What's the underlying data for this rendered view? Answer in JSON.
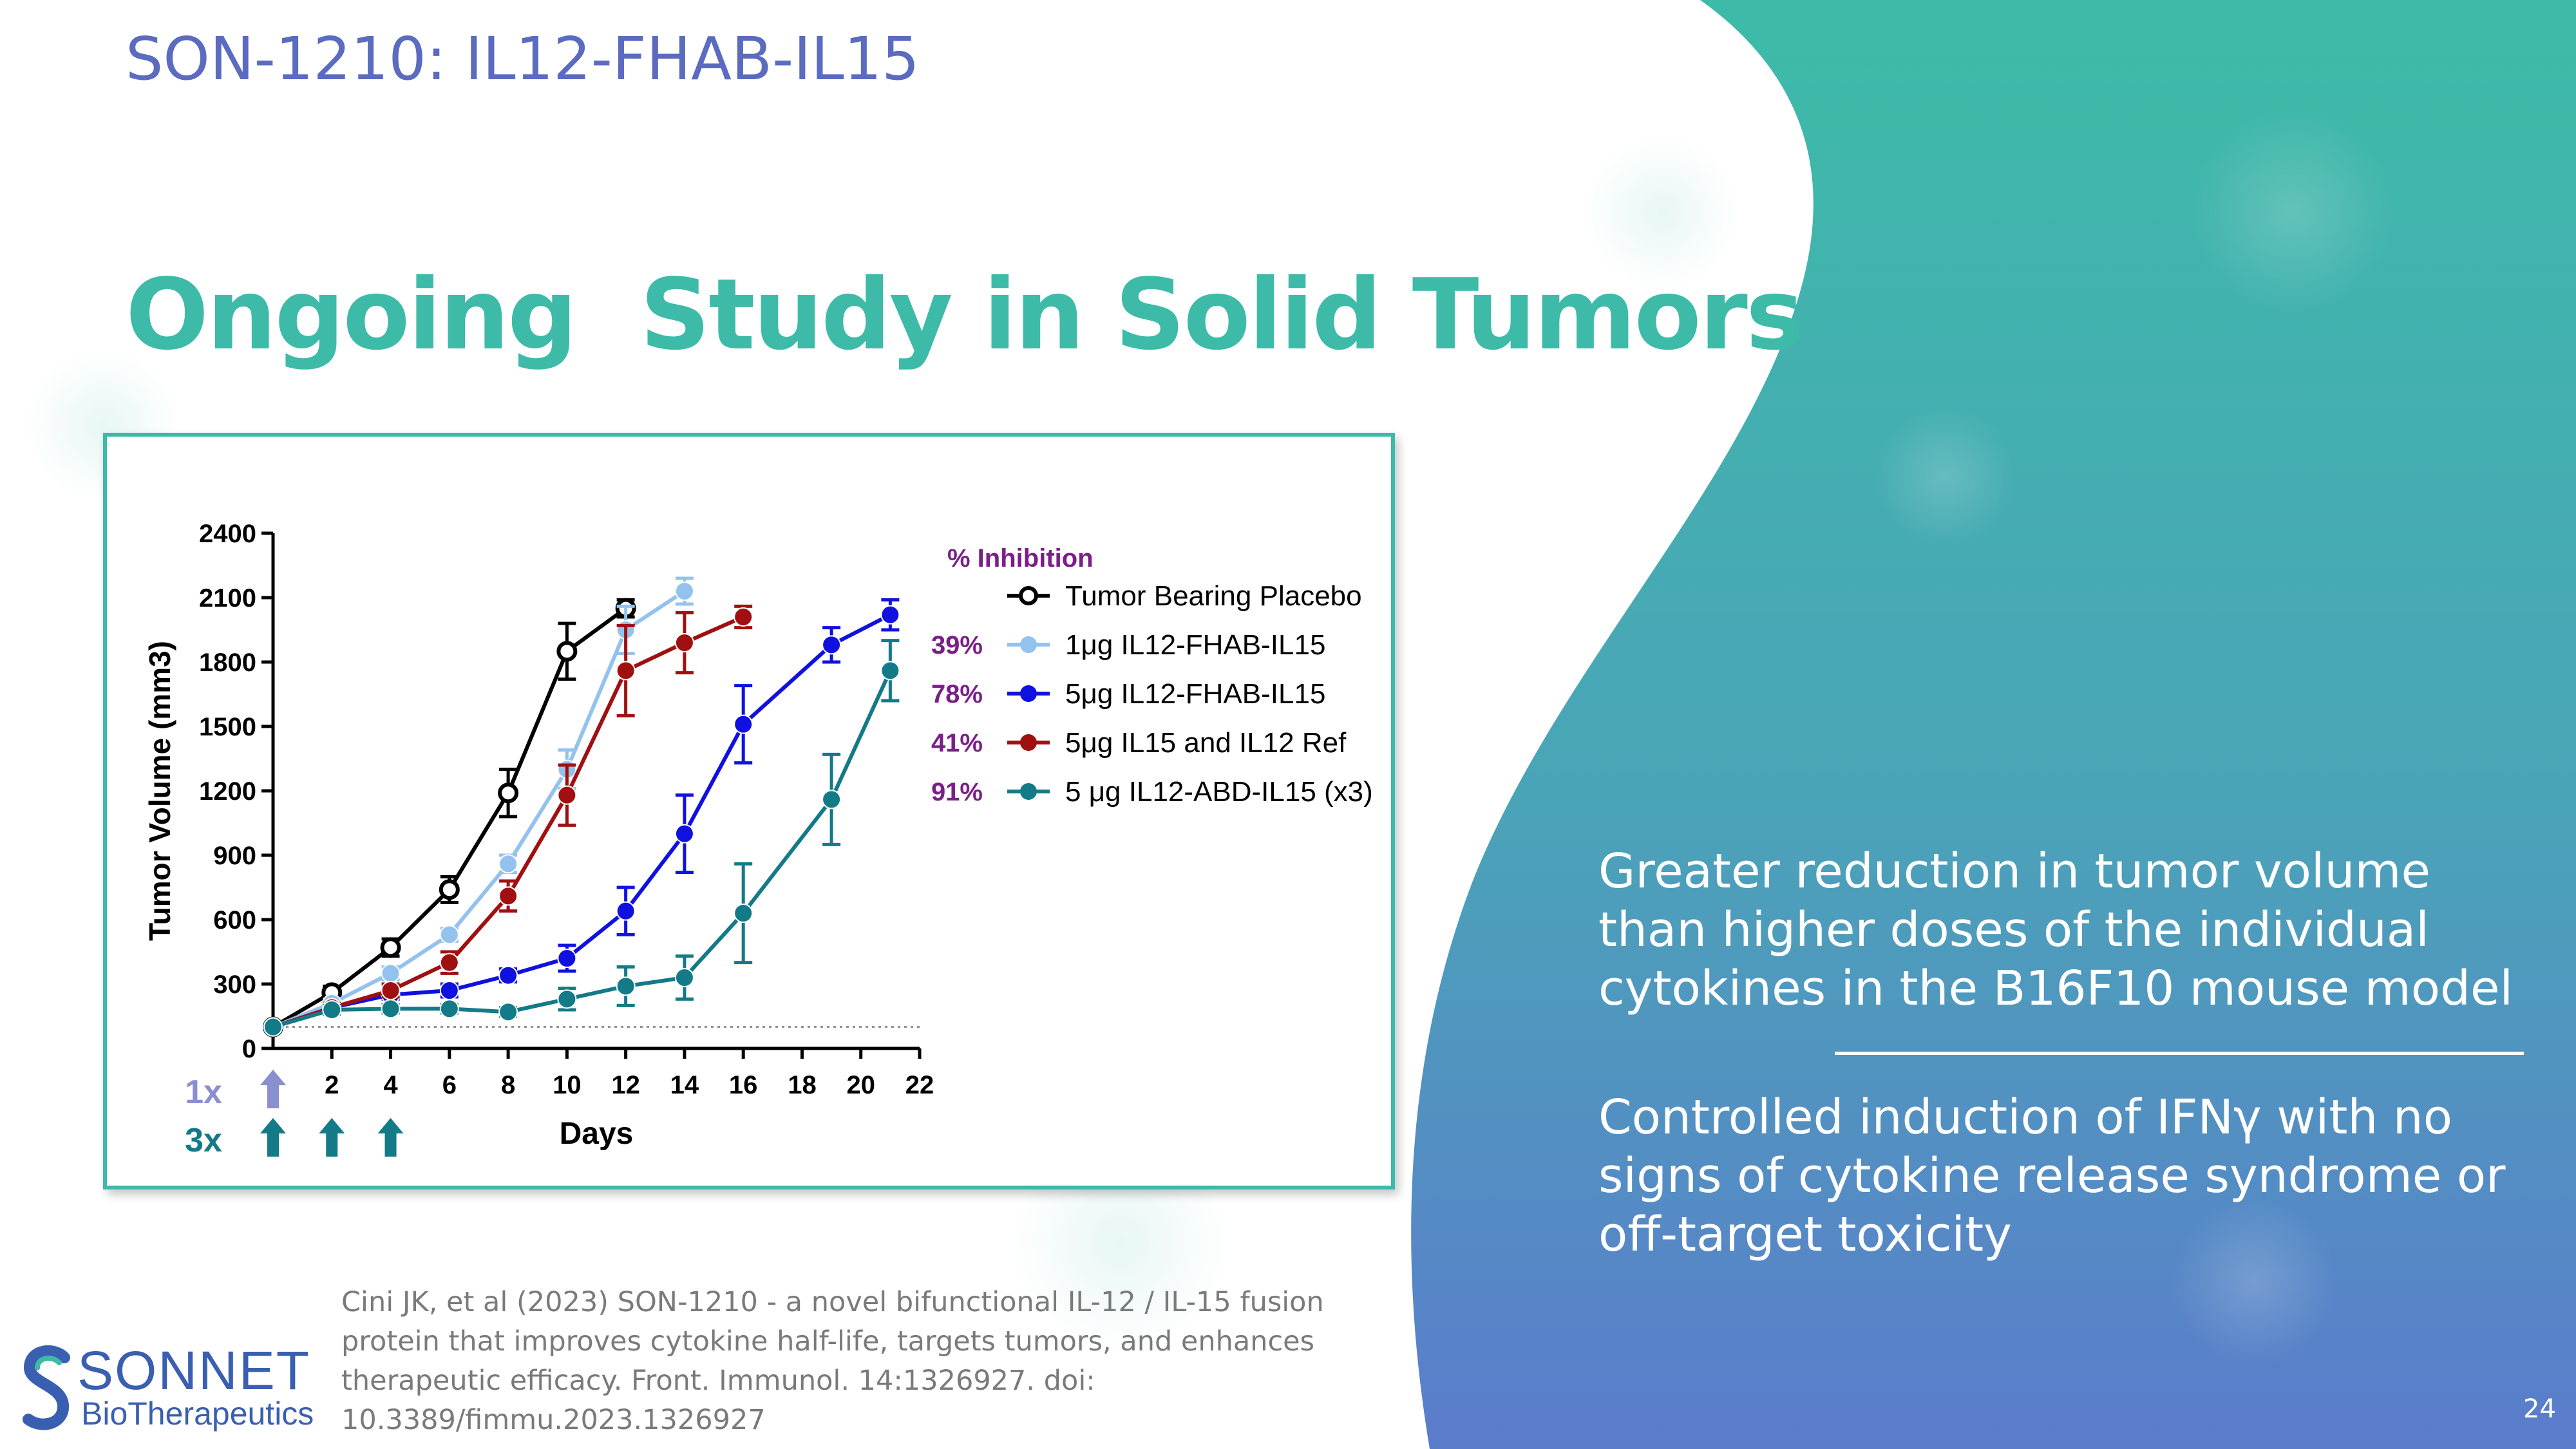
{
  "slide": {
    "pre_title": "SON-1210: IL12-FHAB-IL15",
    "title": "Ongoing  Study in Solid Tumors",
    "page_number": "24",
    "accent_color": "#3dbba8",
    "background_gradient": [
      "#3dbba8",
      "#5b7ccc"
    ]
  },
  "bullets": [
    "Greater reduction in tumor volume than higher doses of the individual cytokines in the B16F10 mouse model",
    "Controlled induction of IFNγ with no signs of cytokine release syndrome or off-target toxicity"
  ],
  "citation": "Cini JK, et al (2023) SON-1210 - a novel bifunctional IL-12 / IL-15 fusion protein that improves cytokine half-life, targets tumors, and enhances therapeutic efficacy. Front. Immunol. 14:1326927. doi: 10.3389/fimmu.2023.1326927",
  "logo": {
    "name": "SONNET",
    "subtitle": "BioTherapeutics"
  },
  "chart_data": {
    "type": "line",
    "title": "",
    "xlabel": "Days",
    "ylabel": "Tumor Volume (mm3)",
    "xlim": [
      0,
      22
    ],
    "ylim": [
      0,
      2400
    ],
    "xticks": [
      2,
      4,
      6,
      8,
      10,
      12,
      14,
      16,
      18,
      20,
      22
    ],
    "yticks": [
      0,
      300,
      600,
      900,
      1200,
      1500,
      1800,
      2100,
      2400
    ],
    "baseline_y": 100,
    "grid": false,
    "legend_position": "top-right",
    "inhibition_header": "% Inhibition",
    "series": [
      {
        "name": "Tumor Bearing Placebo",
        "inhibition": "",
        "color": "#000000",
        "marker": "open-circle",
        "x": [
          0,
          2,
          4,
          6,
          8,
          10,
          12
        ],
        "y": [
          100,
          260,
          470,
          740,
          1190,
          1850,
          2050
        ],
        "err": [
          20,
          30,
          40,
          60,
          110,
          130,
          40
        ]
      },
      {
        "name": "1μg  IL12-FHAB-IL15",
        "inhibition": "39%",
        "color": "#94c2ee",
        "marker": "circle",
        "x": [
          0,
          2,
          4,
          6,
          8,
          10,
          12,
          14
        ],
        "y": [
          100,
          210,
          350,
          530,
          860,
          1300,
          1950,
          2130
        ],
        "err": [
          20,
          20,
          30,
          30,
          40,
          90,
          110,
          60
        ]
      },
      {
        "name": "5μg IL12-FHAB-IL15",
        "inhibition": "78%",
        "color": "#1010e0",
        "marker": "circle",
        "x": [
          0,
          2,
          4,
          6,
          8,
          10,
          12,
          14,
          16,
          19,
          21
        ],
        "y": [
          100,
          190,
          250,
          270,
          340,
          420,
          640,
          1000,
          1510,
          1880,
          2020
        ],
        "err": [
          20,
          20,
          20,
          30,
          30,
          60,
          110,
          180,
          180,
          80,
          70
        ]
      },
      {
        "name": "5μg IL15  and IL12 Ref",
        "inhibition": "41%",
        "color": "#a01010",
        "marker": "circle",
        "x": [
          0,
          2,
          4,
          6,
          8,
          10,
          12,
          14,
          16
        ],
        "y": [
          100,
          190,
          270,
          400,
          710,
          1180,
          1760,
          1890,
          2010
        ],
        "err": [
          20,
          20,
          30,
          50,
          70,
          140,
          210,
          140,
          50
        ]
      },
      {
        "name": "5 μg IL12-ABD-IL15 (x3)",
        "inhibition": "91%",
        "color": "#137a88",
        "marker": "circle",
        "x": [
          0,
          2,
          4,
          6,
          8,
          10,
          12,
          14,
          16,
          19,
          21
        ],
        "y": [
          100,
          180,
          185,
          185,
          170,
          230,
          290,
          330,
          630,
          1160,
          1760
        ],
        "err": [
          20,
          20,
          20,
          20,
          20,
          50,
          90,
          100,
          230,
          210,
          140
        ]
      }
    ],
    "dosing": [
      {
        "label": "1x",
        "days": [
          0
        ],
        "color": "#8a8fd0"
      },
      {
        "label": "3x",
        "days": [
          0,
          2,
          4
        ],
        "color": "#137a88"
      }
    ]
  }
}
